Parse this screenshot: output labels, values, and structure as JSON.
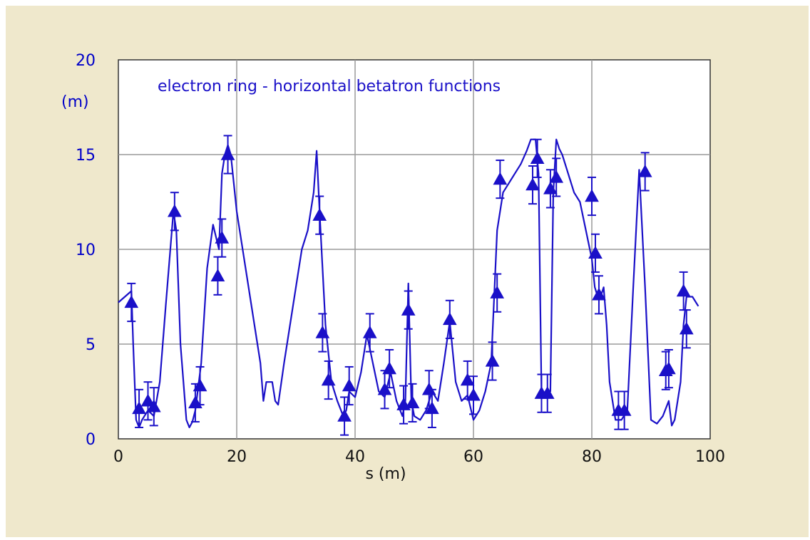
{
  "chart_data": {
    "type": "line",
    "title": "electron ring - horizontal betatron functions",
    "xlabel": "s (m)",
    "ylabel": "(m)",
    "xlim": [
      0,
      100
    ],
    "ylim": [
      0,
      20
    ],
    "xticks": [
      0,
      20,
      40,
      60,
      80,
      100
    ],
    "yticks": [
      0,
      5,
      10,
      15,
      20
    ],
    "grid": true,
    "colors": {
      "series": "#1a10c8",
      "background": "#efe8cc",
      "plot": "#ffffff",
      "grid": "#9a9a9a"
    },
    "series": [
      {
        "kind": "line",
        "x": [
          0,
          2.2,
          2.5,
          3,
          3.5,
          4,
          5,
          6,
          7,
          8,
          9.3,
          9.8,
          10.5,
          11.5,
          12,
          12.5,
          13,
          14,
          15,
          16,
          17,
          17.5,
          18,
          18.5,
          19,
          20,
          21,
          22,
          23,
          24,
          24.5,
          25,
          26,
          26.5,
          27,
          28,
          29,
          30,
          31,
          32,
          33,
          33.5,
          34,
          35,
          36,
          37,
          38,
          38.5,
          39,
          40,
          41,
          42,
          43,
          44,
          45,
          46,
          47,
          48,
          48.5,
          49,
          49.5,
          50,
          51,
          52,
          53,
          54,
          55,
          56,
          57,
          58,
          59,
          60,
          61,
          62,
          63,
          64,
          65,
          66,
          67,
          68,
          69,
          69.7,
          70.5,
          71,
          71.5,
          72,
          73,
          73.5,
          74,
          74.5,
          75,
          76,
          77,
          78,
          79,
          80,
          80.5,
          81,
          81.5,
          82,
          82.5,
          83,
          84,
          85,
          86,
          87,
          88,
          89,
          90,
          91,
          92,
          93,
          93.5,
          94,
          95,
          95.5,
          96,
          97,
          98
        ],
        "y": [
          7.2,
          7.8,
          5,
          1,
          0.6,
          1,
          1.5,
          1.2,
          3,
          7,
          12,
          11,
          5,
          1,
          0.6,
          0.9,
          1.5,
          4,
          9,
          11.3,
          10,
          14,
          15,
          15.5,
          15,
          12,
          10,
          8,
          6,
          4,
          2,
          3,
          3,
          2,
          1.8,
          4,
          6,
          8,
          10,
          11,
          13,
          15.2,
          12,
          6,
          3,
          2,
          1.2,
          1.5,
          2.5,
          2.2,
          3.5,
          5.5,
          4,
          2.5,
          2.2,
          3.5,
          2,
          1.2,
          2,
          8.2,
          2,
          1.2,
          1,
          1.5,
          2.5,
          2,
          4,
          6.2,
          3,
          2,
          2.3,
          1,
          1.5,
          2.5,
          4,
          11,
          13,
          13.5,
          14,
          14.5,
          15.2,
          15.8,
          15.8,
          14,
          2.5,
          2.3,
          2.5,
          13,
          15.8,
          15.3,
          15,
          14,
          13,
          12.5,
          11,
          9.5,
          8,
          7.5,
          7.5,
          8,
          6,
          3,
          1,
          1,
          1.5,
          8,
          14.2,
          8,
          1,
          0.8,
          1.2,
          2,
          0.7,
          1,
          3,
          6,
          7.5,
          7.5,
          7
        ]
      },
      {
        "kind": "markers",
        "marker": "triangle",
        "x": [
          2.2,
          3.5,
          5,
          6,
          9.5,
          13,
          13.8,
          16.8,
          17.5,
          18.5,
          34,
          34.5,
          35.5,
          38.2,
          39,
          42.5,
          45,
          45.8,
          48.2,
          49,
          49.7,
          52.5,
          53,
          56,
          59,
          60,
          63.2,
          64,
          64.5,
          70,
          70.8,
          71.5,
          72.5,
          73,
          74,
          80,
          80.6,
          81.2,
          84.5,
          85.5,
          89,
          92.5,
          93,
          95.5,
          96
        ],
        "y": [
          7.2,
          1.6,
          2,
          1.7,
          12,
          1.9,
          2.8,
          8.6,
          10.6,
          15,
          11.8,
          5.6,
          3.1,
          1.2,
          2.8,
          5.6,
          2.6,
          3.7,
          1.8,
          6.8,
          1.9,
          2.6,
          1.6,
          6.3,
          3.1,
          2.3,
          4.1,
          7.7,
          13.7,
          13.4,
          14.8,
          2.4,
          2.4,
          13.2,
          13.8,
          12.8,
          9.8,
          7.6,
          1.5,
          1.5,
          14.1,
          3.6,
          3.7,
          7.8,
          5.8
        ],
        "error": 1.0
      }
    ]
  }
}
